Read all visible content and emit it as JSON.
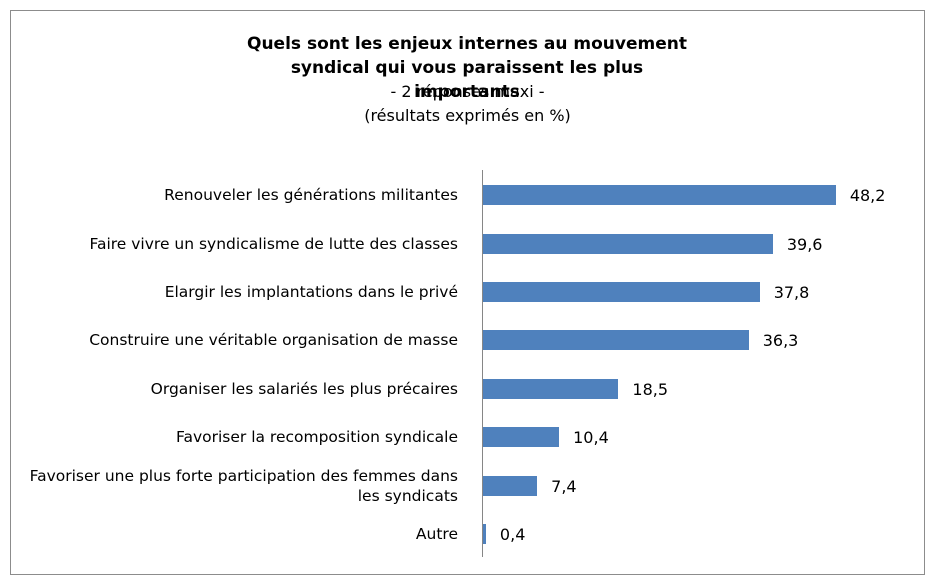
{
  "chart_data": {
    "type": "bar",
    "orientation": "horizontal",
    "title": "Quels sont les enjeux internes au mouvement syndical qui vous paraissent les plus importants",
    "subtitle": [
      "- 2 réponses maxi -",
      "(résultats exprimés en %)"
    ],
    "categories": [
      "Renouveler les générations militantes",
      "Faire vivre un syndicalisme de lutte des classes",
      "Elargir les implantations dans le privé",
      "Construire une véritable organisation de masse",
      "Organiser les salariés les plus précaires",
      "Favoriser la recomposition syndicale",
      "Favoriser une plus forte participation des femmes dans les syndicats",
      "Autre"
    ],
    "values": [
      48.2,
      39.6,
      37.8,
      36.3,
      18.5,
      10.4,
      7.4,
      0.4
    ],
    "value_labels": [
      "48,2",
      "39,6",
      "37,8",
      "36,3",
      "18,5",
      "10,4",
      "7,4",
      "0,4"
    ],
    "color": "#4f81bd",
    "xlim": [
      0,
      50
    ]
  }
}
